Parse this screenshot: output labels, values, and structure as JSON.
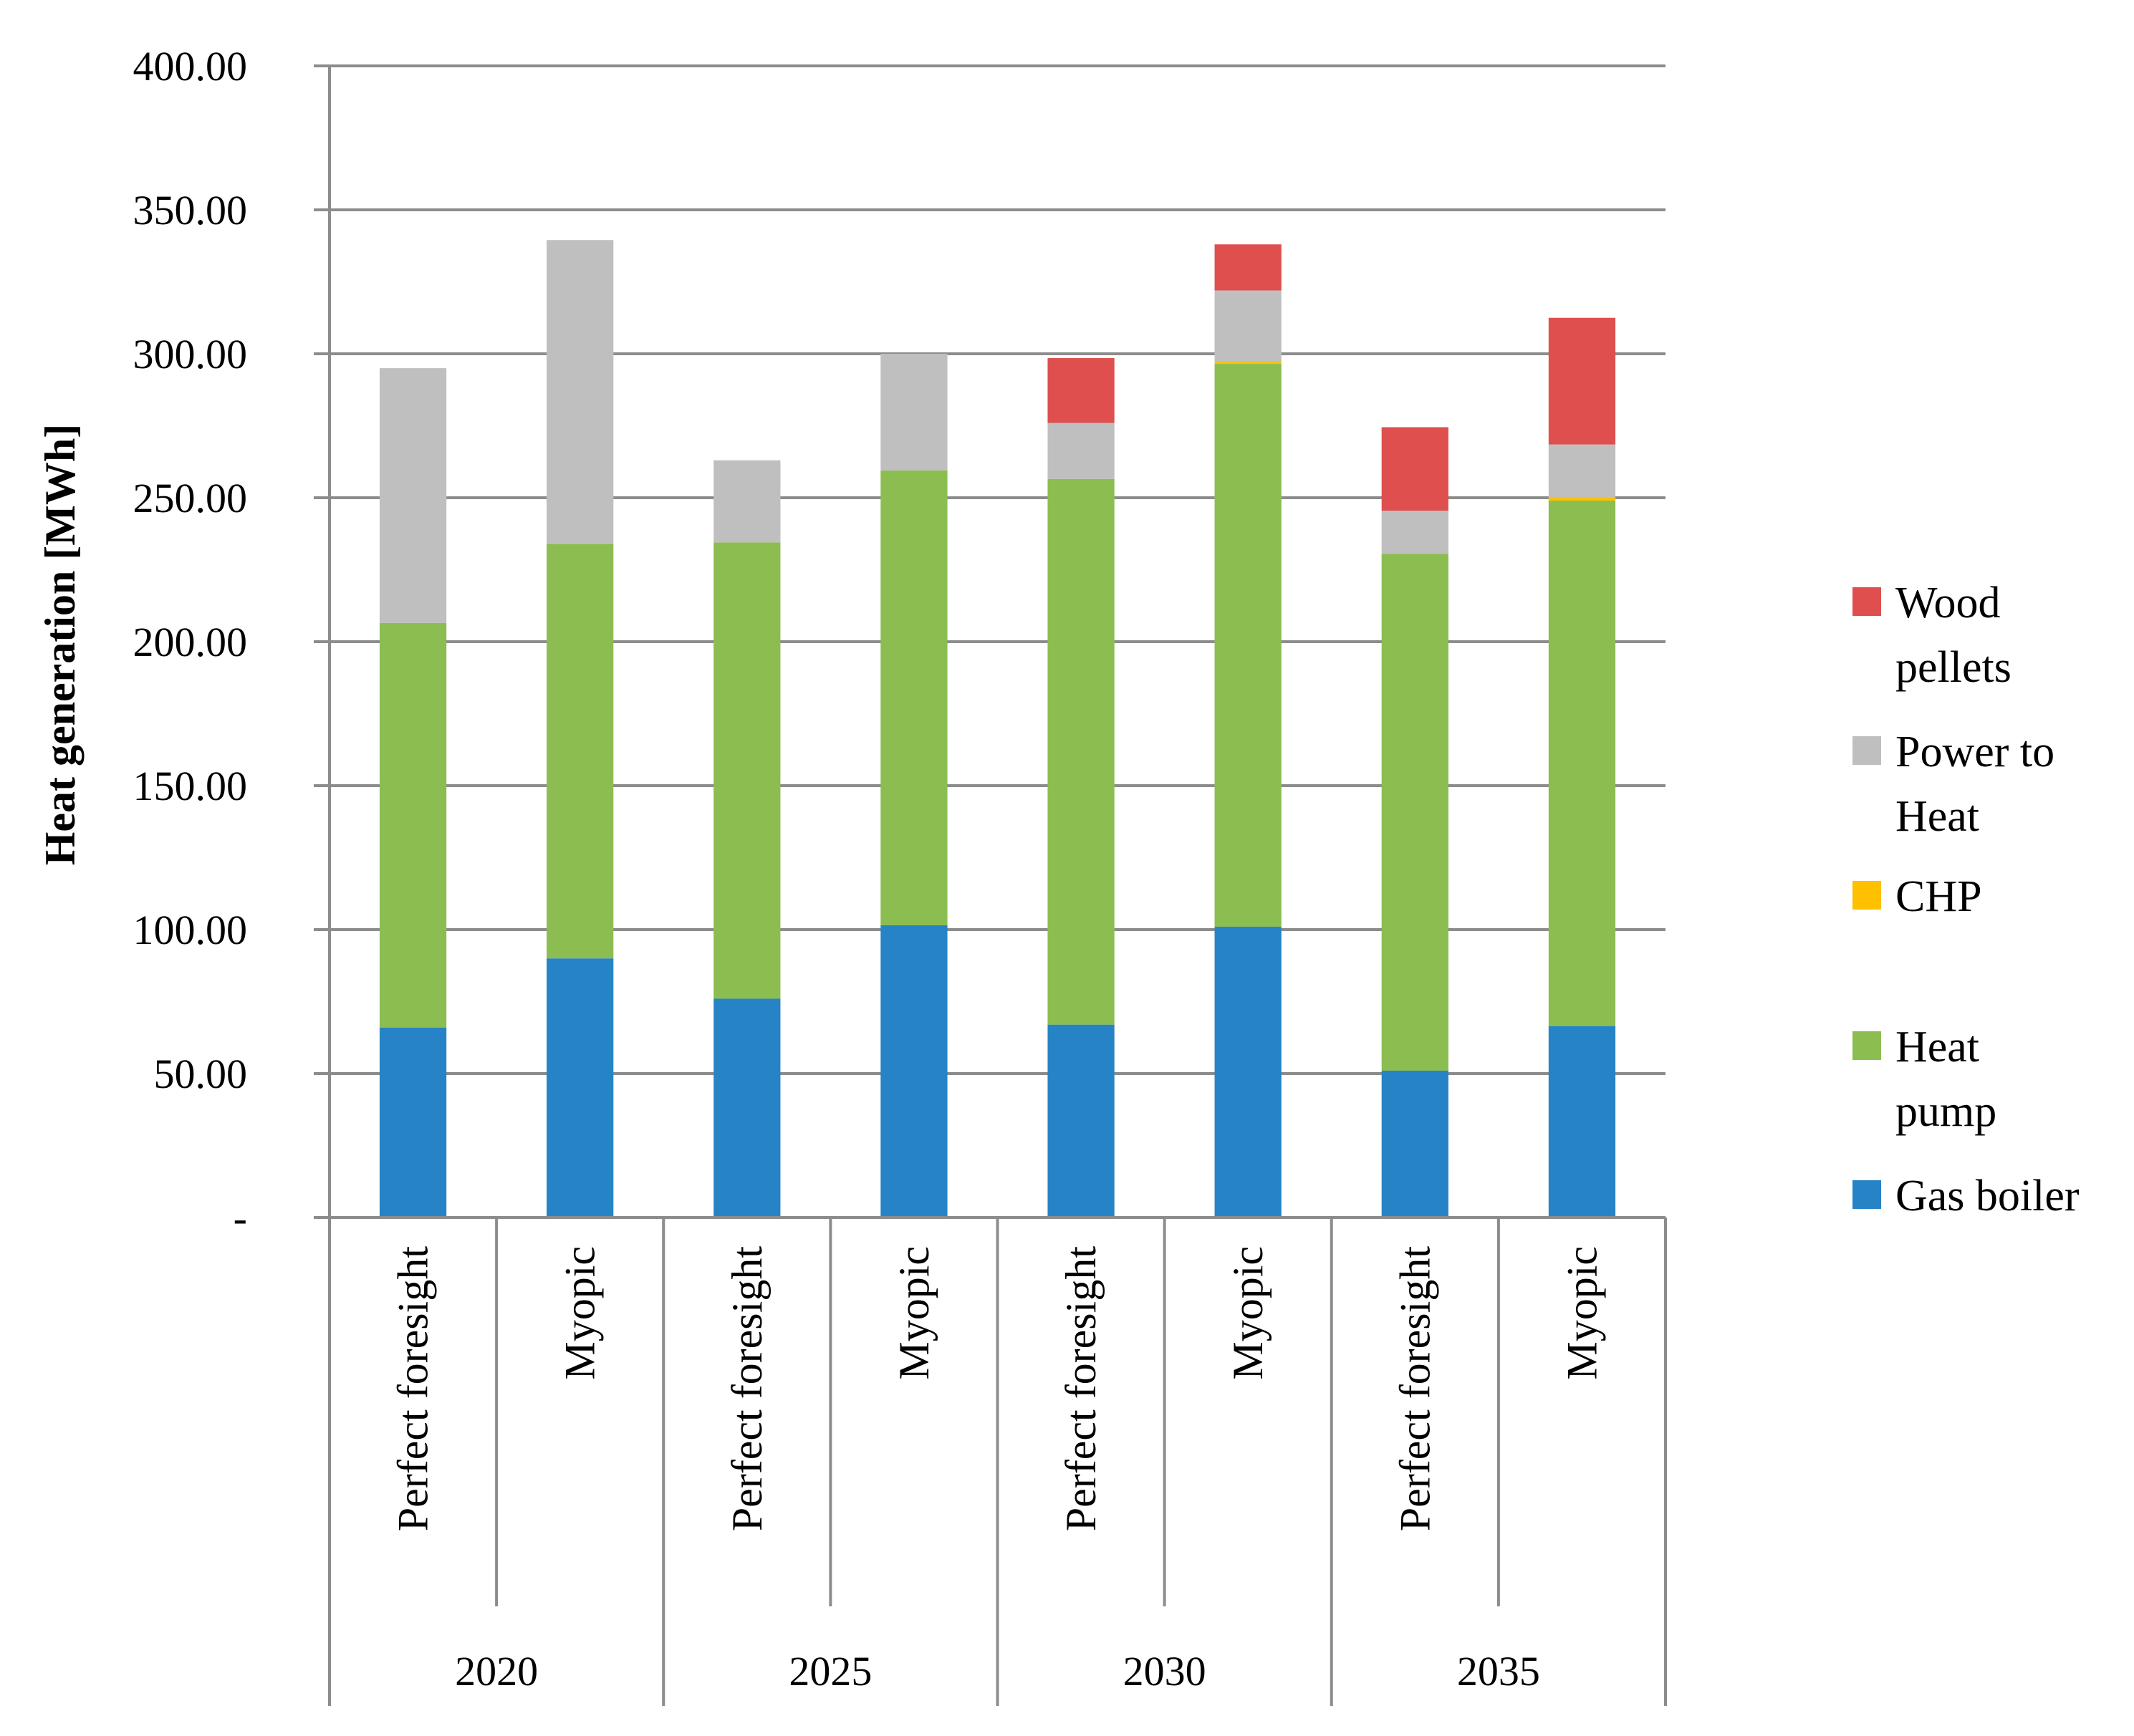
{
  "chart_data": {
    "type": "bar",
    "stacked": true,
    "ylabel": "Heat generation [MWh]",
    "xlabel": "",
    "ylim": [
      0,
      400
    ],
    "yticks": [
      {
        "value": 0,
        "label": "-"
      },
      {
        "value": 50,
        "label": "50.00"
      },
      {
        "value": 100,
        "label": "100.00"
      },
      {
        "value": 150,
        "label": "150.00"
      },
      {
        "value": 200,
        "label": "200.00"
      },
      {
        "value": 250,
        "label": "250.00"
      },
      {
        "value": 300,
        "label": "300.00"
      },
      {
        "value": 350,
        "label": "350.00"
      },
      {
        "value": 400,
        "label": "400.00"
      }
    ],
    "grid": true,
    "legend_position": "right",
    "groups": [
      "2020",
      "2025",
      "2030",
      "2035"
    ],
    "categories": [
      "Perfect foresight",
      "Myopic",
      "Perfect foresight",
      "Myopic",
      "Perfect foresight",
      "Myopic",
      "Perfect foresight",
      "Myopic"
    ],
    "series": [
      {
        "name": "Gas boiler",
        "color": "#2683c6",
        "values": [
          66,
          90,
          76,
          101.5,
          67,
          101,
          51,
          66.5
        ]
      },
      {
        "name": "Heat pump",
        "color": "#8cbd50",
        "values": [
          140.5,
          144,
          158.5,
          158,
          189.5,
          195.5,
          179.5,
          182.5
        ]
      },
      {
        "name": "CHP",
        "color": "#ffc000",
        "values": [
          0,
          0,
          0,
          0,
          0,
          1,
          0,
          1
        ]
      },
      {
        "name": "Power to Heat",
        "color": "#bfbfbf",
        "values": [
          88.5,
          105.5,
          28.5,
          40.5,
          19.5,
          24.5,
          15,
          18.5
        ]
      },
      {
        "name": "Wood pellets",
        "color": "#de4f4e",
        "values": [
          0,
          0,
          0,
          0,
          22.5,
          16,
          29,
          44
        ]
      }
    ],
    "legend_lines": [
      {
        "series": "Wood pellets",
        "lines": [
          "Wood",
          "pellets"
        ]
      },
      {
        "series": "Power to Heat",
        "lines": [
          "Power to",
          "Heat"
        ]
      },
      {
        "series": "CHP",
        "lines": [
          "CHP"
        ]
      },
      {
        "series": "Heat pump",
        "lines": [
          "Heat",
          "pump"
        ]
      },
      {
        "series": "Gas boiler",
        "lines": [
          "Gas boiler"
        ]
      }
    ],
    "colors": {
      "grid": "#8c8c8c",
      "text": "#000000",
      "background": "#ffffff"
    }
  }
}
